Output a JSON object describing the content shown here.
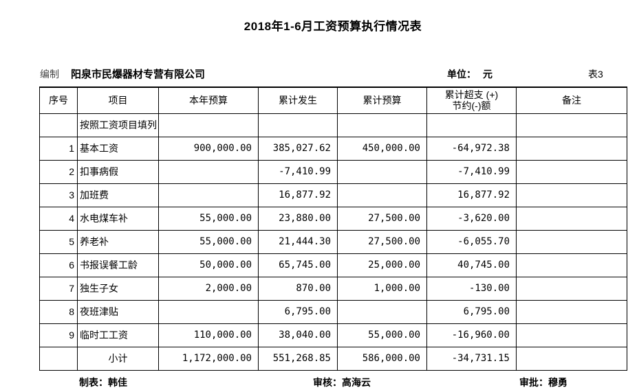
{
  "title": "2018年1-6月工资预算执行情况表",
  "meta": {
    "prepared_label": "编制",
    "company": "阳泉市民爆器材专营有限公司",
    "unit_label": "单位：",
    "unit_value": "元",
    "sheet_label": "表3"
  },
  "table": {
    "columns": [
      {
        "label": "序号"
      },
      {
        "label": "项目"
      },
      {
        "label": "本年预算"
      },
      {
        "label": "累计发生"
      },
      {
        "label": "累计预算"
      },
      {
        "label": "累计超支 (+)\n节约(-)额"
      },
      {
        "label": "备注"
      }
    ],
    "rows": [
      {
        "cells": [
          "",
          "按照工资项目填列",
          "",
          "",
          "",
          "",
          ""
        ]
      },
      {
        "cells": [
          "1",
          "基本工资",
          "900,000.00",
          "385,027.62",
          "450,000.00",
          "-64,972.38",
          ""
        ]
      },
      {
        "cells": [
          "2",
          "扣事病假",
          "",
          "-7,410.99",
          "",
          "-7,410.99",
          ""
        ]
      },
      {
        "cells": [
          "3",
          "加班费",
          "",
          "16,877.92",
          "",
          "16,877.92",
          ""
        ]
      },
      {
        "cells": [
          "4",
          "水电煤车补",
          "55,000.00",
          "23,880.00",
          "27,500.00",
          "-3,620.00",
          ""
        ]
      },
      {
        "cells": [
          "5",
          "养老补",
          "55,000.00",
          "21,444.30",
          "27,500.00",
          "-6,055.70",
          ""
        ]
      },
      {
        "cells": [
          "6",
          "书报误餐工龄",
          "50,000.00",
          "65,745.00",
          "25,000.00",
          "40,745.00",
          ""
        ]
      },
      {
        "cells": [
          "7",
          "独生子女",
          "2,000.00",
          "870.00",
          "1,000.00",
          "-130.00",
          ""
        ]
      },
      {
        "cells": [
          "8",
          "夜班津贴",
          "",
          "6,795.00",
          "",
          "6,795.00",
          ""
        ]
      },
      {
        "cells": [
          "9",
          "临时工工资",
          "110,000.00",
          "38,040.00",
          "55,000.00",
          "-16,960.00",
          ""
        ]
      },
      {
        "cells": [
          "",
          "小计",
          "1,172,000.00",
          "551,268.85",
          "586,000.00",
          "-34,731.15",
          ""
        ],
        "subtotal": true
      }
    ]
  },
  "footer": {
    "tabulator": "制表：韩佳",
    "reviewer": "审核：高海云",
    "approver": "审批：穆勇"
  }
}
